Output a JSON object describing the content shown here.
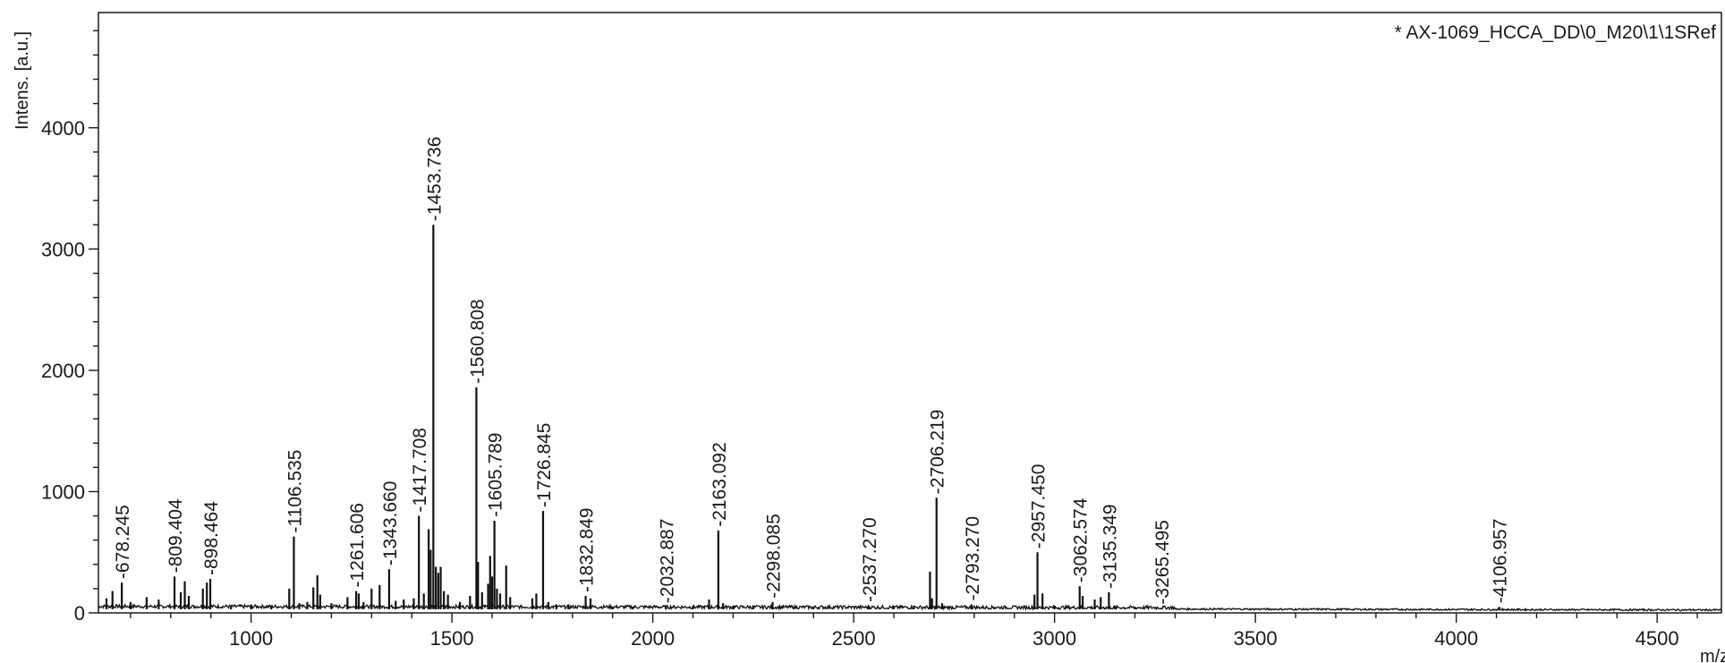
{
  "chart_data": {
    "type": "line",
    "legend": "* AX-1069_HCCA_DD\\0_M20\\1\\1SRef",
    "legend_position": "top-right",
    "ylabel": "Intens. [a.u.]",
    "xlabel": "m/z",
    "xlim": [
      620,
      4660
    ],
    "ylim": [
      0,
      4950
    ],
    "x_ticks": [
      1000,
      1500,
      2000,
      2500,
      3000,
      3500,
      4000,
      4500
    ],
    "x_tick_labels": [
      "1000",
      "1500",
      "2000",
      "2500",
      "3000",
      "3500",
      "4000",
      "4500"
    ],
    "y_ticks": [
      0,
      1000,
      2000,
      3000,
      4000
    ],
    "y_tick_labels": [
      "0",
      "1000",
      "2000",
      "3000",
      "4000"
    ],
    "grid": false,
    "labeled_peaks": [
      {
        "mz": 678.245,
        "label": "678.245",
        "intensity": 250
      },
      {
        "mz": 809.404,
        "label": "809.404",
        "intensity": 300
      },
      {
        "mz": 898.464,
        "label": "898.464",
        "intensity": 280
      },
      {
        "mz": 1106.535,
        "label": "1106.535",
        "intensity": 630
      },
      {
        "mz": 1261.606,
        "label": "1261.606",
        "intensity": 180
      },
      {
        "mz": 1343.66,
        "label": "1343.660",
        "intensity": 360
      },
      {
        "mz": 1417.708,
        "label": "1417.708",
        "intensity": 800
      },
      {
        "mz": 1453.736,
        "label": "1453.736",
        "intensity": 3200
      },
      {
        "mz": 1560.808,
        "label": "1560.808",
        "intensity": 1860
      },
      {
        "mz": 1605.789,
        "label": "1605.789",
        "intensity": 760
      },
      {
        "mz": 1726.845,
        "label": "1726.845",
        "intensity": 840
      },
      {
        "mz": 1832.849,
        "label": "1832.849",
        "intensity": 140
      },
      {
        "mz": 2032.887,
        "label": "2032.887",
        "intensity": 50
      },
      {
        "mz": 2163.092,
        "label": "2163.092",
        "intensity": 680
      },
      {
        "mz": 2298.085,
        "label": "2298.085",
        "intensity": 90
      },
      {
        "mz": 2537.27,
        "label": "2537.270",
        "intensity": 60
      },
      {
        "mz": 2706.219,
        "label": "2706.219",
        "intensity": 950
      },
      {
        "mz": 2793.27,
        "label": "2793.270",
        "intensity": 70
      },
      {
        "mz": 2957.45,
        "label": "2957.450",
        "intensity": 500
      },
      {
        "mz": 3062.574,
        "label": "3062.574",
        "intensity": 220
      },
      {
        "mz": 3135.349,
        "label": "3135.349",
        "intensity": 170
      },
      {
        "mz": 3265.495,
        "label": "3265.495",
        "intensity": 40
      },
      {
        "mz": 4106.957,
        "label": "4106.957",
        "intensity": 50
      }
    ],
    "minor_peaks": [
      {
        "mz": 640,
        "intensity": 120
      },
      {
        "mz": 655,
        "intensity": 180
      },
      {
        "mz": 700,
        "intensity": 90
      },
      {
        "mz": 740,
        "intensity": 130
      },
      {
        "mz": 770,
        "intensity": 110
      },
      {
        "mz": 825,
        "intensity": 170
      },
      {
        "mz": 835,
        "intensity": 260
      },
      {
        "mz": 845,
        "intensity": 140
      },
      {
        "mz": 880,
        "intensity": 200
      },
      {
        "mz": 890,
        "intensity": 250
      },
      {
        "mz": 950,
        "intensity": 60
      },
      {
        "mz": 1000,
        "intensity": 70
      },
      {
        "mz": 1050,
        "intensity": 60
      },
      {
        "mz": 1095,
        "intensity": 200
      },
      {
        "mz": 1120,
        "intensity": 80
      },
      {
        "mz": 1140,
        "intensity": 90
      },
      {
        "mz": 1155,
        "intensity": 210
      },
      {
        "mz": 1165,
        "intensity": 310
      },
      {
        "mz": 1172,
        "intensity": 150
      },
      {
        "mz": 1200,
        "intensity": 80
      },
      {
        "mz": 1240,
        "intensity": 130
      },
      {
        "mz": 1268,
        "intensity": 160
      },
      {
        "mz": 1280,
        "intensity": 90
      },
      {
        "mz": 1300,
        "intensity": 200
      },
      {
        "mz": 1320,
        "intensity": 230
      },
      {
        "mz": 1360,
        "intensity": 100
      },
      {
        "mz": 1380,
        "intensity": 110
      },
      {
        "mz": 1405,
        "intensity": 120
      },
      {
        "mz": 1430,
        "intensity": 160
      },
      {
        "mz": 1442,
        "intensity": 690
      },
      {
        "mz": 1447,
        "intensity": 520
      },
      {
        "mz": 1460,
        "intensity": 380
      },
      {
        "mz": 1466,
        "intensity": 330
      },
      {
        "mz": 1472,
        "intensity": 380
      },
      {
        "mz": 1480,
        "intensity": 180
      },
      {
        "mz": 1490,
        "intensity": 150
      },
      {
        "mz": 1520,
        "intensity": 90
      },
      {
        "mz": 1545,
        "intensity": 140
      },
      {
        "mz": 1565,
        "intensity": 420
      },
      {
        "mz": 1575,
        "intensity": 170
      },
      {
        "mz": 1590,
        "intensity": 240
      },
      {
        "mz": 1595,
        "intensity": 470
      },
      {
        "mz": 1600,
        "intensity": 300
      },
      {
        "mz": 1612,
        "intensity": 200
      },
      {
        "mz": 1620,
        "intensity": 160
      },
      {
        "mz": 1635,
        "intensity": 390
      },
      {
        "mz": 1645,
        "intensity": 130
      },
      {
        "mz": 1700,
        "intensity": 120
      },
      {
        "mz": 1710,
        "intensity": 160
      },
      {
        "mz": 1740,
        "intensity": 90
      },
      {
        "mz": 1760,
        "intensity": 70
      },
      {
        "mz": 1790,
        "intensity": 70
      },
      {
        "mz": 1845,
        "intensity": 120
      },
      {
        "mz": 1900,
        "intensity": 50
      },
      {
        "mz": 1950,
        "intensity": 50
      },
      {
        "mz": 2100,
        "intensity": 60
      },
      {
        "mz": 2140,
        "intensity": 110
      },
      {
        "mz": 2175,
        "intensity": 80
      },
      {
        "mz": 2200,
        "intensity": 60
      },
      {
        "mz": 2250,
        "intensity": 60
      },
      {
        "mz": 2350,
        "intensity": 50
      },
      {
        "mz": 2400,
        "intensity": 50
      },
      {
        "mz": 2600,
        "intensity": 50
      },
      {
        "mz": 2650,
        "intensity": 60
      },
      {
        "mz": 2690,
        "intensity": 340
      },
      {
        "mz": 2695,
        "intensity": 120
      },
      {
        "mz": 2720,
        "intensity": 80
      },
      {
        "mz": 2850,
        "intensity": 50
      },
      {
        "mz": 2950,
        "intensity": 150
      },
      {
        "mz": 2970,
        "intensity": 160
      },
      {
        "mz": 3000,
        "intensity": 60
      },
      {
        "mz": 3070,
        "intensity": 140
      },
      {
        "mz": 3100,
        "intensity": 110
      },
      {
        "mz": 3115,
        "intensity": 130
      },
      {
        "mz": 3150,
        "intensity": 60
      },
      {
        "mz": 3200,
        "intensity": 40
      },
      {
        "mz": 3400,
        "intensity": 30
      },
      {
        "mz": 3600,
        "intensity": 25
      },
      {
        "mz": 3900,
        "intensity": 20
      },
      {
        "mz": 4115,
        "intensity": 40
      },
      {
        "mz": 4200,
        "intensity": 20
      }
    ]
  }
}
